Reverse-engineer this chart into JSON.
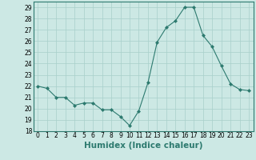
{
  "x": [
    0,
    1,
    2,
    3,
    4,
    5,
    6,
    7,
    8,
    9,
    10,
    11,
    12,
    13,
    14,
    15,
    16,
    17,
    18,
    19,
    20,
    21,
    22,
    23
  ],
  "y": [
    22,
    21.8,
    21,
    21,
    20.3,
    20.5,
    20.5,
    19.9,
    19.9,
    19.3,
    18.5,
    19.8,
    22.3,
    25.9,
    27.2,
    27.8,
    29.0,
    29.0,
    26.5,
    25.5,
    23.8,
    22.2,
    21.7,
    21.6
  ],
  "line_color": "#2d7a6f",
  "marker": "D",
  "marker_size": 2.0,
  "bg_color": "#cce8e4",
  "grid_color": "#a8cfca",
  "xlabel": "Humidex (Indice chaleur)",
  "ylim": [
    18,
    29.5
  ],
  "xlim": [
    -0.5,
    23.5
  ],
  "yticks": [
    18,
    19,
    20,
    21,
    22,
    23,
    24,
    25,
    26,
    27,
    28,
    29
  ],
  "xticks": [
    0,
    1,
    2,
    3,
    4,
    5,
    6,
    7,
    8,
    9,
    10,
    11,
    12,
    13,
    14,
    15,
    16,
    17,
    18,
    19,
    20,
    21,
    22,
    23
  ],
  "tick_label_fontsize": 5.5,
  "xlabel_fontsize": 7.5
}
